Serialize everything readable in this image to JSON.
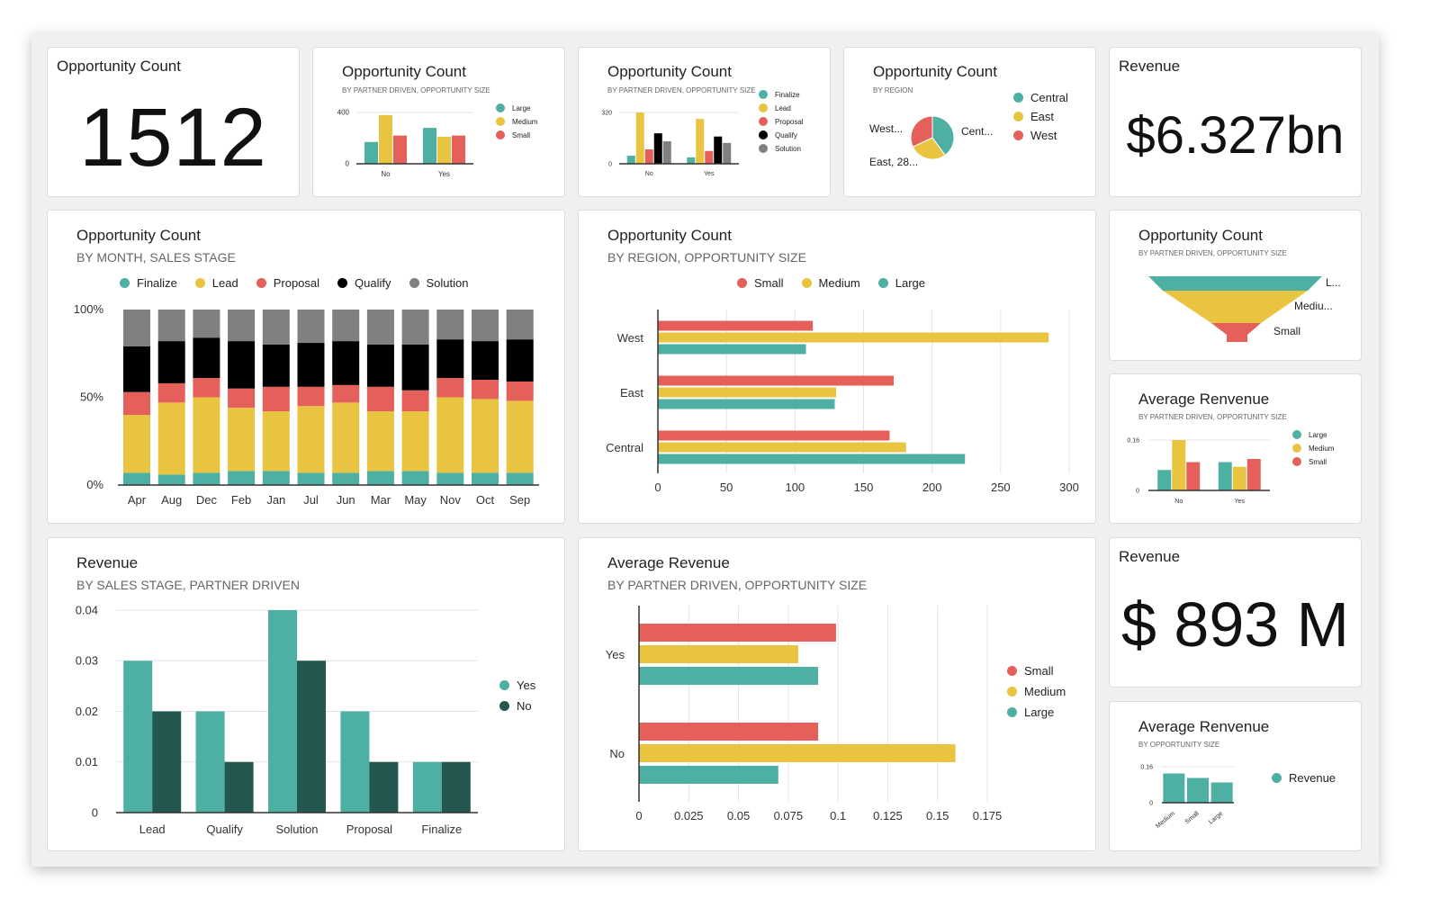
{
  "colors": {
    "teal": "#4DB0A3",
    "yellow": "#E9C440",
    "red": "#E5605A",
    "black": "#000000",
    "gray": "#808080",
    "darkteal": "#24574F"
  },
  "kpi_count": {
    "title": "Opportunity Count",
    "value": "1512"
  },
  "kpi_revenue": {
    "title": "Revenue",
    "value": "$6.327bn"
  },
  "kpi_revenue2": {
    "title": "Revenue",
    "value": "$ 893 M"
  },
  "charts": {
    "c2": {
      "title": "Opportunity Count",
      "subtitle": "BY PARTNER DRIVEN, OPPORTUNITY SIZE",
      "type": "bar",
      "categories": [
        "No",
        "Yes"
      ],
      "yticks": [
        "0",
        "400"
      ],
      "ylim": [
        0,
        400
      ],
      "series": [
        {
          "name": "Large",
          "color": "#4DB0A3",
          "values": [
            170,
            280
          ]
        },
        {
          "name": "Medium",
          "color": "#E9C440",
          "values": [
            380,
            210
          ]
        },
        {
          "name": "Small",
          "color": "#E5605A",
          "values": [
            220,
            220
          ]
        }
      ]
    },
    "c3": {
      "title": "Opportunity Count",
      "subtitle": "BY PARTNER DRIVEN, OPPORTUNITY SIZE",
      "type": "bar",
      "categories": [
        "No",
        "Yes"
      ],
      "yticks": [
        "0",
        "320"
      ],
      "ylim": [
        0,
        320
      ],
      "series": [
        {
          "name": "Finalize",
          "color": "#4DB0A3",
          "values": [
            50,
            40
          ]
        },
        {
          "name": "Lead",
          "color": "#E9C440",
          "values": [
            320,
            280
          ]
        },
        {
          "name": "Proposal",
          "color": "#E5605A",
          "values": [
            90,
            80
          ]
        },
        {
          "name": "Qualify",
          "color": "#000000",
          "values": [
            190,
            170
          ]
        },
        {
          "name": "Solution",
          "color": "#808080",
          "values": [
            140,
            130
          ]
        }
      ]
    },
    "c4": {
      "title": "Opportunity Count",
      "subtitle": "BY REGION",
      "type": "pie",
      "slices": [
        {
          "name": "Central",
          "color": "#4DB0A3",
          "value": 40,
          "label": "Cent..."
        },
        {
          "name": "East",
          "color": "#E9C440",
          "value": 28,
          "label": "East, 28..."
        },
        {
          "name": "West",
          "color": "#E5605A",
          "value": 32,
          "label": "West..."
        }
      ]
    },
    "stack": {
      "title": "Opportunity Count",
      "subtitle": "BY MONTH, SALES STAGE",
      "type": "bar",
      "stacked": true,
      "yticks": [
        "0%",
        "50%",
        "100%"
      ],
      "ylim": [
        0,
        100
      ],
      "categories": [
        "Apr",
        "Aug",
        "Dec",
        "Feb",
        "Jan",
        "Jul",
        "Jun",
        "Mar",
        "May",
        "Nov",
        "Oct",
        "Sep"
      ],
      "series": [
        {
          "name": "Finalize",
          "color": "#4DB0A3",
          "values": [
            7,
            6,
            7,
            8,
            8,
            7,
            7,
            8,
            8,
            7,
            7,
            7
          ]
        },
        {
          "name": "Lead",
          "color": "#E9C440",
          "values": [
            33,
            41,
            43,
            36,
            34,
            38,
            40,
            34,
            34,
            43,
            42,
            41
          ]
        },
        {
          "name": "Proposal",
          "color": "#E5605A",
          "values": [
            13,
            11,
            11,
            11,
            14,
            11,
            10,
            14,
            12,
            11,
            11,
            11
          ]
        },
        {
          "name": "Qualify",
          "color": "#000000",
          "values": [
            26,
            24,
            23,
            27,
            24,
            25,
            25,
            24,
            26,
            22,
            22,
            24
          ]
        },
        {
          "name": "Solution",
          "color": "#808080",
          "values": [
            21,
            18,
            16,
            18,
            20,
            19,
            18,
            20,
            20,
            17,
            18,
            17
          ]
        }
      ]
    },
    "region": {
      "title": "Opportunity Count",
      "subtitle": "BY REGION, OPPORTUNITY SIZE",
      "type": "bar",
      "orientation": "horizontal",
      "categories": [
        "West",
        "East",
        "Central"
      ],
      "xticks": [
        "0",
        "50",
        "100",
        "150",
        "200",
        "250",
        "300"
      ],
      "xlim": [
        0,
        300
      ],
      "series": [
        {
          "name": "Small",
          "color": "#E5605A",
          "values": [
            113,
            172,
            169
          ]
        },
        {
          "name": "Medium",
          "color": "#E9C440",
          "values": [
            285,
            130,
            181
          ]
        },
        {
          "name": "Large",
          "color": "#4DB0A3",
          "values": [
            108,
            129,
            224
          ]
        }
      ]
    },
    "funnel": {
      "title": "Opportunity Count",
      "subtitle": "BY PARTNER DRIVEN, OPPORTUNITY SIZE",
      "type": "funnel",
      "stages": [
        {
          "name": "Large",
          "label": "L...",
          "color": "#4DB0A3"
        },
        {
          "name": "Medium",
          "label": "Mediu...",
          "color": "#E9C440"
        },
        {
          "name": "Small",
          "label": "Small",
          "color": "#E5605A"
        }
      ]
    },
    "avg1": {
      "title": "Average Renvenue",
      "subtitle": "BY PARTNER DRIVEN, OPPORTUNITY SIZE",
      "type": "bar",
      "categories": [
        "No",
        "Yes"
      ],
      "yticks": [
        "0",
        "0.16"
      ],
      "ylim": [
        0,
        0.16
      ],
      "series": [
        {
          "name": "Large",
          "color": "#4DB0A3",
          "values": [
            0.065,
            0.09
          ]
        },
        {
          "name": "Medium",
          "color": "#E9C440",
          "values": [
            0.16,
            0.075
          ]
        },
        {
          "name": "Small",
          "color": "#E5605A",
          "values": [
            0.09,
            0.1
          ]
        }
      ]
    },
    "revenue": {
      "title": "Revenue",
      "subtitle": "BY SALES STAGE, PARTNER DRIVEN",
      "type": "bar",
      "categories": [
        "Lead",
        "Qualify",
        "Solution",
        "Proposal",
        "Finalize"
      ],
      "yticks": [
        "0",
        "0.01",
        "0.02",
        "0.03",
        "0.04"
      ],
      "ylim": [
        0,
        0.04
      ],
      "series": [
        {
          "name": "Yes",
          "color": "#4DB0A3",
          "values": [
            0.03,
            0.02,
            0.04,
            0.02,
            0.01
          ]
        },
        {
          "name": "No",
          "color": "#24574F",
          "values": [
            0.02,
            0.01,
            0.03,
            0.01,
            0.01
          ]
        }
      ]
    },
    "avgrev": {
      "title": "Average Revenue",
      "subtitle": "BY PARTNER DRIVEN, OPPORTUNITY SIZE",
      "type": "bar",
      "orientation": "horizontal",
      "categories": [
        "Yes",
        "No"
      ],
      "xticks": [
        "0",
        "0.025",
        "0.05",
        "0.075",
        "0.1",
        "0.125",
        "0.15",
        "0.175"
      ],
      "xlim": [
        0,
        0.175
      ],
      "series": [
        {
          "name": "Small",
          "color": "#E5605A",
          "values": [
            0.099,
            0.09
          ]
        },
        {
          "name": "Medium",
          "color": "#E9C440",
          "values": [
            0.08,
            0.159
          ]
        },
        {
          "name": "Large",
          "color": "#4DB0A3",
          "values": [
            0.09,
            0.07
          ]
        }
      ]
    },
    "avg2": {
      "title": "Average Renvenue",
      "subtitle": "BY OPPORTUNITY SIZE",
      "type": "bar",
      "categories": [
        "Medium",
        "Small",
        "Large"
      ],
      "yticks": [
        "0",
        "0.16"
      ],
      "ylim": [
        0,
        0.16
      ],
      "series": [
        {
          "name": "Revenue",
          "color": "#4DB0A3",
          "values": [
            0.13,
            0.11,
            0.09
          ]
        }
      ]
    }
  }
}
